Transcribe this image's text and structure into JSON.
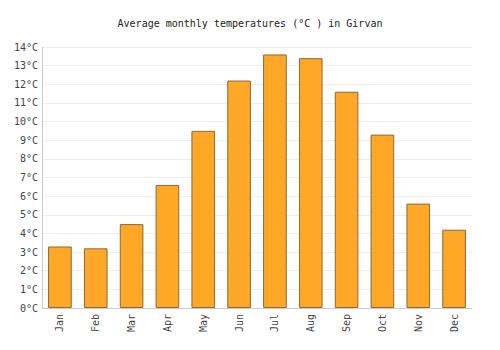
{
  "chart_data": {
    "type": "bar",
    "title": "Average monthly temperatures (°C ) in Girvan",
    "categories": [
      "Jan",
      "Feb",
      "Mar",
      "Apr",
      "May",
      "Jun",
      "Jul",
      "Aug",
      "Sep",
      "Oct",
      "Nov",
      "Dec"
    ],
    "values": [
      3.3,
      3.2,
      4.5,
      6.6,
      9.5,
      12.2,
      13.6,
      13.4,
      11.6,
      9.3,
      5.6,
      4.2
    ],
    "color": "#ffa726",
    "ylim": [
      0,
      14
    ],
    "yticks": [
      {
        "value": 0,
        "label": "0°C"
      },
      {
        "value": 1,
        "label": "1°C"
      },
      {
        "value": 2,
        "label": "2°C"
      },
      {
        "value": 3,
        "label": "3°C"
      },
      {
        "value": 4,
        "label": "4°C"
      },
      {
        "value": 5,
        "label": "5°C"
      },
      {
        "value": 6,
        "label": "6°C"
      },
      {
        "value": 7,
        "label": "7°C"
      },
      {
        "value": 8,
        "label": "8°C"
      },
      {
        "value": 9,
        "label": "9°C"
      },
      {
        "value": 10,
        "label": "10°C"
      },
      {
        "value": 11,
        "label": "11°C"
      },
      {
        "value": 12,
        "label": "12°C"
      },
      {
        "value": 13,
        "label": "13°C"
      },
      {
        "value": 14,
        "label": "14°C"
      }
    ],
    "grid": true
  }
}
